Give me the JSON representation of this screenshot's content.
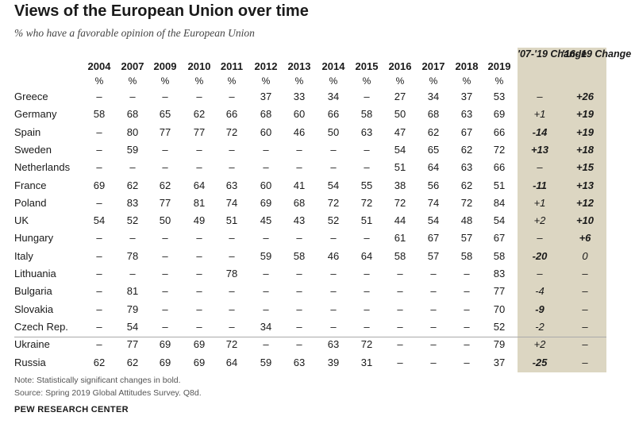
{
  "title": "Views of the European Union over time",
  "subtitle": "% who have a favorable opinion of the European Union",
  "change_headers": [
    "'07-'19 Change",
    "'16-'19 Change"
  ],
  "note": "Note: Statistically significant changes in bold.",
  "source": "Source: Spring 2019 Global Attitudes Survey. Q8d.",
  "org": "PEW RESEARCH CENTER",
  "chart_data": {
    "type": "table",
    "years": [
      "2004",
      "2007",
      "2009",
      "2010",
      "2011",
      "2012",
      "2013",
      "2014",
      "2015",
      "2016",
      "2017",
      "2018",
      "2019"
    ],
    "unit": "%",
    "rows": [
      {
        "country": "Greece",
        "values": [
          "–",
          "–",
          "–",
          "–",
          "–",
          "37",
          "33",
          "34",
          "–",
          "27",
          "34",
          "37",
          "53"
        ],
        "chg07": "–",
        "chg07_sig": false,
        "chg16": "+26",
        "chg16_sig": true
      },
      {
        "country": "Germany",
        "values": [
          "58",
          "68",
          "65",
          "62",
          "66",
          "68",
          "60",
          "66",
          "58",
          "50",
          "68",
          "63",
          "69"
        ],
        "chg07": "+1",
        "chg07_sig": false,
        "chg16": "+19",
        "chg16_sig": true
      },
      {
        "country": "Spain",
        "values": [
          "–",
          "80",
          "77",
          "77",
          "72",
          "60",
          "46",
          "50",
          "63",
          "47",
          "62",
          "67",
          "66"
        ],
        "chg07": "-14",
        "chg07_sig": true,
        "chg16": "+19",
        "chg16_sig": true
      },
      {
        "country": "Sweden",
        "values": [
          "–",
          "59",
          "–",
          "–",
          "–",
          "–",
          "–",
          "–",
          "–",
          "54",
          "65",
          "62",
          "72"
        ],
        "chg07": "+13",
        "chg07_sig": true,
        "chg16": "+18",
        "chg16_sig": true
      },
      {
        "country": "Netherlands",
        "values": [
          "–",
          "–",
          "–",
          "–",
          "–",
          "–",
          "–",
          "–",
          "–",
          "51",
          "64",
          "63",
          "66"
        ],
        "chg07": "–",
        "chg07_sig": false,
        "chg16": "+15",
        "chg16_sig": true
      },
      {
        "country": "France",
        "values": [
          "69",
          "62",
          "62",
          "64",
          "63",
          "60",
          "41",
          "54",
          "55",
          "38",
          "56",
          "62",
          "51"
        ],
        "chg07": "-11",
        "chg07_sig": true,
        "chg16": "+13",
        "chg16_sig": true
      },
      {
        "country": "Poland",
        "values": [
          "–",
          "83",
          "77",
          "81",
          "74",
          "69",
          "68",
          "72",
          "72",
          "72",
          "74",
          "72",
          "84"
        ],
        "chg07": "+1",
        "chg07_sig": false,
        "chg16": "+12",
        "chg16_sig": true
      },
      {
        "country": "UK",
        "values": [
          "54",
          "52",
          "50",
          "49",
          "51",
          "45",
          "43",
          "52",
          "51",
          "44",
          "54",
          "48",
          "54"
        ],
        "chg07": "+2",
        "chg07_sig": false,
        "chg16": "+10",
        "chg16_sig": true
      },
      {
        "country": "Hungary",
        "values": [
          "–",
          "–",
          "–",
          "–",
          "–",
          "–",
          "–",
          "–",
          "–",
          "61",
          "67",
          "57",
          "67"
        ],
        "chg07": "–",
        "chg07_sig": false,
        "chg16": "+6",
        "chg16_sig": true
      },
      {
        "country": "Italy",
        "values": [
          "–",
          "78",
          "–",
          "–",
          "–",
          "59",
          "58",
          "46",
          "64",
          "58",
          "57",
          "58",
          "58"
        ],
        "chg07": "-20",
        "chg07_sig": true,
        "chg16": "0",
        "chg16_sig": false
      },
      {
        "country": "Lithuania",
        "values": [
          "–",
          "–",
          "–",
          "–",
          "78",
          "–",
          "–",
          "–",
          "–",
          "–",
          "–",
          "–",
          "83"
        ],
        "chg07": "–",
        "chg07_sig": false,
        "chg16": "–",
        "chg16_sig": false
      },
      {
        "country": "Bulgaria",
        "values": [
          "–",
          "81",
          "–",
          "–",
          "–",
          "–",
          "–",
          "–",
          "–",
          "–",
          "–",
          "–",
          "77"
        ],
        "chg07": "-4",
        "chg07_sig": false,
        "chg16": "–",
        "chg16_sig": false
      },
      {
        "country": "Slovakia",
        "values": [
          "–",
          "79",
          "–",
          "–",
          "–",
          "–",
          "–",
          "–",
          "–",
          "–",
          "–",
          "–",
          "70"
        ],
        "chg07": "-9",
        "chg07_sig": true,
        "chg16": "–",
        "chg16_sig": false
      },
      {
        "country": "Czech Rep.",
        "values": [
          "–",
          "54",
          "–",
          "–",
          "–",
          "34",
          "–",
          "–",
          "–",
          "–",
          "–",
          "–",
          "52"
        ],
        "chg07": "-2",
        "chg07_sig": false,
        "chg16": "–",
        "chg16_sig": false
      },
      {
        "country": "Ukraine",
        "values": [
          "–",
          "77",
          "69",
          "69",
          "72",
          "–",
          "–",
          "63",
          "72",
          "–",
          "–",
          "–",
          "79"
        ],
        "chg07": "+2",
        "chg07_sig": false,
        "chg16": "–",
        "chg16_sig": false
      },
      {
        "country": "Russia",
        "values": [
          "62",
          "62",
          "69",
          "69",
          "64",
          "59",
          "63",
          "39",
          "31",
          "–",
          "–",
          "–",
          "37"
        ],
        "chg07": "-25",
        "chg07_sig": true,
        "chg16": "–",
        "chg16_sig": false
      }
    ]
  }
}
